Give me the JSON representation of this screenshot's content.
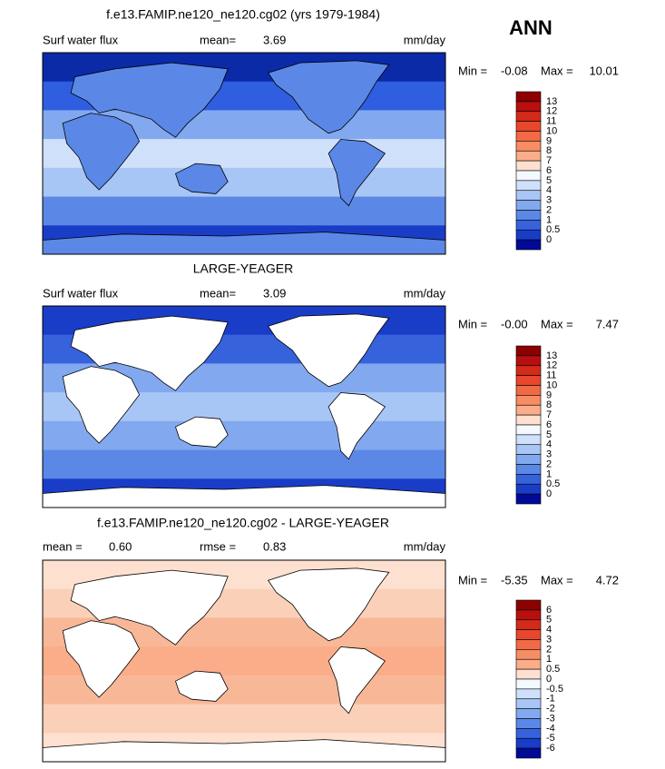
{
  "header": {
    "season": "ANN"
  },
  "panels": [
    {
      "title": "f.e13.FAMIP.ne120_ne120.cg02 (yrs 1979-1984)",
      "variable": "Surf water flux",
      "mean_label": "mean=",
      "mean": "3.69",
      "units": "mm/day",
      "min_label": "Min =",
      "min": "-0.08",
      "max_label": "Max =",
      "max": "10.01",
      "colorbar": {
        "labels": [
          "13",
          "12",
          "11",
          "10",
          "9",
          "8",
          "7",
          "6",
          "5",
          "4",
          "3",
          "2",
          "1",
          "0.5",
          "0"
        ],
        "colors": [
          "#8c0000",
          "#b80f0f",
          "#d42a1a",
          "#e8472b",
          "#f26a45",
          "#f88c64",
          "#fbad89",
          "#fde0cf",
          "#f4f8ff",
          "#cfe0fa",
          "#a8c6f5",
          "#82a9ef",
          "#5b88e6",
          "#3663dc",
          "#1a3dc8",
          "#000a96"
        ]
      }
    },
    {
      "title": "LARGE-YEAGER",
      "variable": "Surf water flux",
      "mean_label": "mean=",
      "mean": "3.09",
      "units": "mm/day",
      "min_label": "Min =",
      "min": "-0.00",
      "max_label": "Max =",
      "max": "7.47",
      "colorbar": {
        "labels": [
          "13",
          "12",
          "11",
          "10",
          "9",
          "8",
          "7",
          "6",
          "5",
          "4",
          "3",
          "2",
          "1",
          "0.5",
          "0"
        ],
        "colors": [
          "#8c0000",
          "#b80f0f",
          "#d42a1a",
          "#e8472b",
          "#f26a45",
          "#f88c64",
          "#fbad89",
          "#fde0cf",
          "#f4f8ff",
          "#cfe0fa",
          "#a8c6f5",
          "#82a9ef",
          "#5b88e6",
          "#3663dc",
          "#1a3dc8",
          "#000a96"
        ]
      }
    },
    {
      "title": "f.e13.FAMIP.ne120_ne120.cg02 - LARGE-YEAGER",
      "mean_label": "mean =",
      "mean": "0.60",
      "rmse_label": "rmse =",
      "rmse": "0.83",
      "units": "mm/day",
      "min_label": "Min =",
      "min": "-5.35",
      "max_label": "Max =",
      "max": "4.72",
      "colorbar": {
        "labels": [
          "6",
          "5",
          "4",
          "3",
          "2",
          "1",
          "0.5",
          "0",
          "-0.5",
          "-1",
          "-2",
          "-3",
          "-4",
          "-5",
          "-6"
        ],
        "colors": [
          "#8c0000",
          "#b80f0f",
          "#d42a1a",
          "#e8472b",
          "#f26a45",
          "#f88c64",
          "#fbad89",
          "#fde0cf",
          "#f4f8ff",
          "#cfe0fa",
          "#a8c6f5",
          "#82a9ef",
          "#5b88e6",
          "#3663dc",
          "#1a3dc8",
          "#000a96"
        ]
      }
    }
  ]
}
